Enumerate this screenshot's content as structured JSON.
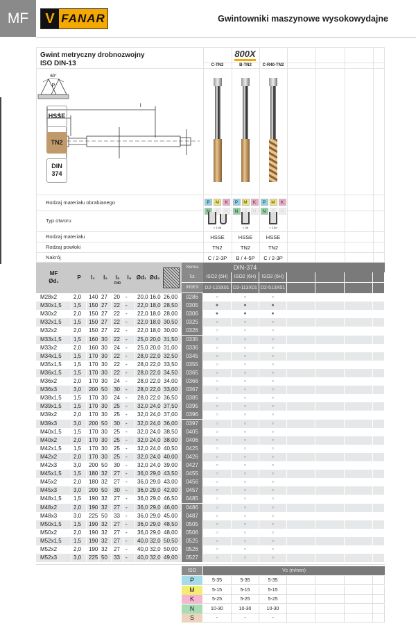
{
  "header": {
    "section": "MF",
    "brand": "FANAR",
    "title": "Gwintowniki maszynowe wysokowydajne"
  },
  "product": {
    "title_line1": "Gwint metryczny drobnozwojny",
    "title_line2": "ISO DIN-13",
    "series": "800X",
    "variants": [
      "C-TN2",
      "B-TN2",
      "C-R40-TN2"
    ],
    "badges": [
      "HSSE",
      "TN2",
      "DIN 374"
    ],
    "angle": "60°",
    "pitch": "P"
  },
  "props": {
    "material_label": "Rodzaj materiału obrabianego",
    "iso_groups": [
      {
        "k": "P",
        "color": "#8fd3e8"
      },
      {
        "k": "M",
        "color": "#f3e96b"
      },
      {
        "k": "K",
        "color": "#f4a8c9"
      },
      {
        "k": "N",
        "color": "#8fd3a1"
      },
      {
        "k": "S",
        "color": "#eeeeee"
      },
      {
        "k": "H",
        "color": "#eeeeee"
      }
    ],
    "hole_label": "Typ otworu",
    "hole_notes": [
      "< 1,5d",
      "< 3d",
      "< 2,5d"
    ],
    "tool_material_label": "Rodzaj materiału",
    "tool_material": [
      "HSSE",
      "HSSE",
      "HSSE"
    ],
    "coating_label": "Rodzaj powłoki",
    "coating": [
      "TN2",
      "TN2",
      "TN2"
    ],
    "chamfer_label": "Nakrój",
    "chamfer": [
      "C / 2-3P",
      "B / 4-5P",
      "C / 2-3P"
    ]
  },
  "table": {
    "headers": {
      "mf": "MF",
      "d1": "Ød₁",
      "p": "P",
      "l1": "l₁",
      "l2": "l₂",
      "l3r": "l₃",
      "r40": "R40",
      "l3": "l₃",
      "d2": "Ød₂",
      "a": "a",
      "norma": "Norma",
      "tol": "Tol.",
      "index": "INDEX"
    },
    "norma": "DIN-374",
    "tol": [
      "ISO2 (6H)",
      "ISO2 (6H)",
      "ISO2 (6H)"
    ],
    "codes": [
      "D2-123X01",
      "D2-113X01",
      "D2-513X01"
    ],
    "rows": [
      [
        "M28x2",
        "2,0",
        "140",
        "27",
        "20",
        "-",
        "20,0",
        "16,0",
        "26,00",
        "0286",
        "○",
        "○",
        "○"
      ],
      [
        "M30x1,5",
        "1,5",
        "150",
        "27",
        "22",
        "-",
        "22,0",
        "18,0",
        "28,50",
        "0305",
        "●",
        "●",
        "●"
      ],
      [
        "M30x2",
        "2,0",
        "150",
        "27",
        "22",
        "-",
        "22,0",
        "18,0",
        "28,00",
        "0306",
        "●",
        "●",
        "●"
      ],
      [
        "M32x1,5",
        "1,5",
        "150",
        "27",
        "22",
        "-",
        "22,0",
        "18,0",
        "30,50",
        "0325",
        "○",
        "○",
        "○"
      ],
      [
        "M32x2",
        "2,0",
        "150",
        "27",
        "22",
        "-",
        "22,0",
        "18,0",
        "30,00",
        "0326",
        "○",
        "○",
        "○"
      ],
      [
        "M33x1,5",
        "1,5",
        "160",
        "30",
        "22",
        "-",
        "25,0",
        "20,0",
        "31,50",
        "0335",
        "○",
        "○",
        "○"
      ],
      [
        "M33x2",
        "2,0",
        "160",
        "30",
        "24",
        "-",
        "25,0",
        "20,0",
        "31,00",
        "0336",
        "○",
        "○",
        "○"
      ],
      [
        "M34x1,5",
        "1,5",
        "170",
        "30",
        "22",
        "-",
        "28,0",
        "22,0",
        "32,50",
        "0345",
        "○",
        "○",
        "○"
      ],
      [
        "M35x1,5",
        "1,5",
        "170",
        "30",
        "22",
        "-",
        "28,0",
        "22,0",
        "33,50",
        "0355",
        "○",
        "○",
        "○"
      ],
      [
        "M36x1,5",
        "1,5",
        "170",
        "30",
        "22",
        "-",
        "28,0",
        "22,0",
        "34,50",
        "0365",
        "○",
        "○",
        "○"
      ],
      [
        "M36x2",
        "2,0",
        "170",
        "30",
        "24",
        "-",
        "28,0",
        "22,0",
        "34,00",
        "0366",
        "○",
        "○",
        "○"
      ],
      [
        "M36x3",
        "3,0",
        "200",
        "50",
        "30",
        "-",
        "28,0",
        "22,0",
        "33,00",
        "0367",
        "○",
        "○",
        "○"
      ],
      [
        "M38x1,5",
        "1,5",
        "170",
        "30",
        "24",
        "-",
        "28,0",
        "22,0",
        "36,50",
        "0385",
        "○",
        "○",
        "○"
      ],
      [
        "M39x1,5",
        "1,5",
        "170",
        "30",
        "25",
        "-",
        "32,0",
        "24,0",
        "37,50",
        "0395",
        "○",
        "○",
        "○"
      ],
      [
        "M39x2",
        "2,0",
        "170",
        "30",
        "25",
        "-",
        "32,0",
        "24,0",
        "37,00",
        "0396",
        "○",
        "○",
        "○"
      ],
      [
        "M39x3",
        "3,0",
        "200",
        "50",
        "30",
        "-",
        "32,0",
        "24,0",
        "36,00",
        "0397",
        "○",
        "○",
        "○"
      ],
      [
        "M40x1,5",
        "1,5",
        "170",
        "30",
        "25",
        "-",
        "32,0",
        "24,0",
        "38,50",
        "0405",
        "○",
        "○",
        "○"
      ],
      [
        "M40x2",
        "2,0",
        "170",
        "30",
        "25",
        "-",
        "32,0",
        "24,0",
        "38,00",
        "0406",
        "○",
        "○",
        "○"
      ],
      [
        "M42x1,5",
        "1,5",
        "170",
        "30",
        "25",
        "-",
        "32,0",
        "24,0",
        "40,50",
        "0425",
        "○",
        "○",
        "○"
      ],
      [
        "M42x2",
        "2,0",
        "170",
        "30",
        "25",
        "-",
        "32,0",
        "24,0",
        "40,00",
        "0426",
        "○",
        "○",
        "○"
      ],
      [
        "M42x3",
        "3,0",
        "200",
        "50",
        "30",
        "-",
        "32,0",
        "24,0",
        "39,00",
        "0427",
        "○",
        "○",
        "○"
      ],
      [
        "M45x1,5",
        "1,5",
        "180",
        "32",
        "27",
        "-",
        "36,0",
        "29,0",
        "43,50",
        "0455",
        "○",
        "○",
        "○"
      ],
      [
        "M45x2",
        "2,0",
        "180",
        "32",
        "27",
        "-",
        "36,0",
        "29,0",
        "43,00",
        "0456",
        "○",
        "○",
        "○"
      ],
      [
        "M45x3",
        "3,0",
        "200",
        "50",
        "30",
        "-",
        "36,0",
        "29,0",
        "42,00",
        "0457",
        "○",
        "○",
        "○"
      ],
      [
        "M48x1,5",
        "1,5",
        "190",
        "32",
        "27",
        "-",
        "36,0",
        "29,0",
        "46,50",
        "0485",
        "○",
        "○",
        "○"
      ],
      [
        "M48x2",
        "2,0",
        "190",
        "32",
        "27",
        "-",
        "36,0",
        "29,0",
        "46,00",
        "0486",
        "○",
        "○",
        "○"
      ],
      [
        "M48x3",
        "3,0",
        "225",
        "50",
        "33",
        "-",
        "36,0",
        "29,0",
        "45,00",
        "0487",
        "○",
        "○",
        "○"
      ],
      [
        "M50x1,5",
        "1,5",
        "190",
        "32",
        "27",
        "-",
        "36,0",
        "29,0",
        "48,50",
        "0505",
        "○",
        "○",
        "○"
      ],
      [
        "M50x2",
        "2,0",
        "190",
        "32",
        "27",
        "-",
        "36,0",
        "29,0",
        "48,00",
        "0506",
        "○",
        "○",
        "○"
      ],
      [
        "M52x1,5",
        "1,5",
        "190",
        "32",
        "27",
        "-",
        "40,0",
        "32,0",
        "50,50",
        "0525",
        "○",
        "○",
        "○"
      ],
      [
        "M52x2",
        "2,0",
        "190",
        "32",
        "27",
        "-",
        "40,0",
        "32,0",
        "50,00",
        "0526",
        "○",
        "○",
        "○"
      ],
      [
        "M52x3",
        "3,0",
        "225",
        "50",
        "33",
        "-",
        "40,0",
        "32,0",
        "49,00",
        "0527",
        "○",
        "○",
        "○"
      ]
    ]
  },
  "speeds": {
    "iso_label": "ISO",
    "vc_label": "Vc (m/min)",
    "rows": [
      {
        "k": "P",
        "color": "#a6dcea",
        "v": [
          "5-35",
          "5-35",
          "5-35"
        ]
      },
      {
        "k": "M",
        "color": "#f5ec74",
        "v": [
          "5-15",
          "5-15",
          "5-15"
        ]
      },
      {
        "k": "K",
        "color": "#f6b6d2",
        "v": [
          "5-25",
          "5-25",
          "5-25"
        ]
      },
      {
        "k": "N",
        "color": "#a8dcb4",
        "v": [
          "10-30",
          "10-30",
          "10-30"
        ]
      },
      {
        "k": "S",
        "color": "#ecd3bb",
        "v": [
          "-",
          "-",
          "-"
        ]
      }
    ]
  },
  "colors": {
    "brand": "#f5a800",
    "tn2": "#c19a6b",
    "index_bg": "#7f7f7f",
    "header_bg": "#c9c9c9"
  }
}
